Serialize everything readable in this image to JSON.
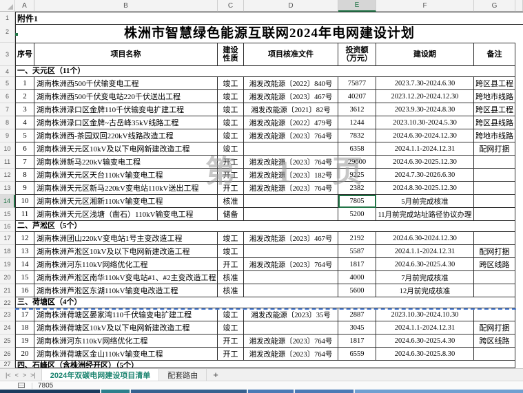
{
  "spreadsheet": {
    "column_headers": [
      "A",
      "B",
      "C",
      "D",
      "E",
      "F",
      "G"
    ],
    "selected_column": "E",
    "selected_row": "14",
    "attachment": "附件1",
    "title": "株洲市智慧绿色能源互联网2024年电网建设计划",
    "watermark": "第 1 页",
    "header": [
      "序号",
      "项目名称",
      "建设\n性质",
      "项目核准文件",
      "投资额\n（万元）",
      "建设期",
      "备注"
    ],
    "sections": [
      {
        "title": "一、天元区（11个）",
        "rows": [
          {
            "no": "1",
            "name": "湖南株洲西500千伏输变电工程",
            "nature": "竣工",
            "doc": "湘发改能源〔2022〕840号",
            "inv": "75877",
            "period": "2023.7.30-2024.6.30",
            "note": "跨区县工程"
          },
          {
            "no": "2",
            "name": "湖南株洲西500千伏变电站220千伏送出工程",
            "nature": "竣工",
            "doc": "湘发改能源〔2023〕467号",
            "inv": "40207",
            "period": "2023.12.20-2024.12.30",
            "note": "跨地市线路"
          },
          {
            "no": "3",
            "name": "湖南株洲渌口区金牌110千伏输变电扩建工程",
            "nature": "竣工",
            "doc": "湘发改能源〔2021〕82号",
            "inv": "3612",
            "period": "2023.9.30-2024.8.30",
            "note": "跨区县工程"
          },
          {
            "no": "4",
            "name": "湖南株洲渌口区金牌~古岳峰35kV线路工程",
            "nature": "竣工",
            "doc": "湘发改能源〔2022〕479号",
            "inv": "1244",
            "period": "2023.10.30-2024.5.30",
            "note": "跨区县线路"
          },
          {
            "no": "5",
            "name": "湖南株洲西-茶园双回220kV线路改造工程",
            "nature": "竣工",
            "doc": "湘发改能源〔2023〕764号",
            "inv": "7832",
            "period": "2024.6.30-2024.12.30",
            "note": "跨地市线路"
          },
          {
            "no": "6",
            "name": "湖南株洲天元区10kV及以下电网新建改造工程",
            "nature": "竣工",
            "doc": "",
            "inv": "6358",
            "period": "2024.1.1-2024.12.31",
            "note": "配网打捆"
          },
          {
            "no": "7",
            "name": "湖南株洲新马220kV输变电工程",
            "nature": "开工",
            "doc": "湘发改能源〔2023〕764号",
            "inv": "29600",
            "period": "2024.6.30-2025.12.30",
            "note": ""
          },
          {
            "no": "8",
            "name": "湖南株洲天元区天台110kV输变电工程",
            "nature": "开工",
            "doc": "湘发改能源〔2023〕182号",
            "inv": "9225",
            "period": "2024.7.30-2026.6.30",
            "note": ""
          },
          {
            "no": "9",
            "name": "湖南株洲天元区新马220kV变电站110kV送出工程",
            "nature": "开工",
            "doc": "湘发改能源〔2023〕764号",
            "inv": "2382",
            "period": "2024.8.30-2025.12.30",
            "note": ""
          },
          {
            "no": "10",
            "name": "湖南株洲天元区湘新110kV输变电工程",
            "nature": "核准",
            "doc": "",
            "inv": "7805",
            "period": "5月前完成核准",
            "note": "",
            "selected": true
          },
          {
            "no": "11",
            "name": "湖南株洲天元区浅塘（凿石）110kV输变电工程",
            "nature": "储备",
            "doc": "",
            "inv": "5200",
            "period": "11月前完成站址路径协议办理",
            "note": ""
          }
        ]
      },
      {
        "title": "二、芦淞区（5个）",
        "rows": [
          {
            "no": "12",
            "name": "湖南株洲团山220kV变电站1号主变改造工程",
            "nature": "竣工",
            "doc": "湘发改能源〔2023〕467号",
            "inv": "2192",
            "period": "2024.6.30-2024.12.30",
            "note": ""
          },
          {
            "no": "13",
            "name": "湖南株洲芦淞区10kV及以下电网新建改造工程",
            "nature": "竣工",
            "doc": "",
            "inv": "5587",
            "period": "2024.1.1-2024.12.31",
            "note": "配网打捆"
          },
          {
            "no": "14",
            "name": "湖南株洲河东110kV网络优化工程",
            "nature": "开工",
            "doc": "湘发改能源〔2023〕764号",
            "inv": "1817",
            "period": "2024.6.30-2025.4.30",
            "note": "跨区线路"
          },
          {
            "no": "15",
            "name": "湖南株洲芦淞区南华110kV变电站#1、#2主变改造工程",
            "nature": "核准",
            "doc": "",
            "inv": "4000",
            "period": "7月前完成核准",
            "note": ""
          },
          {
            "no": "16",
            "name": "湖南株洲芦淞区东湖110kV输变电改造工程",
            "nature": "核准",
            "doc": "",
            "inv": "5600",
            "period": "12月前完成核准",
            "note": ""
          }
        ]
      },
      {
        "title": "三、荷塘区（4个）",
        "rows": [
          {
            "no": "17",
            "name": "湖南株洲荷塘区晏家湾110千伏输变电扩建工程",
            "nature": "竣工",
            "doc": "湘发改能源〔2023〕35号",
            "inv": "2887",
            "period": "2023.10.30-2024.10.30",
            "note": ""
          },
          {
            "no": "18",
            "name": "湖南株洲荷塘区10kV及以下电网新建改造工程",
            "nature": "竣工",
            "doc": "",
            "inv": "3045",
            "period": "2024.1.1-2024.12.31",
            "note": "配网打捆"
          },
          {
            "no": "19",
            "name": "湖南株洲河东110kV网络优化工程",
            "nature": "开工",
            "doc": "湘发改能源〔2023〕764号",
            "inv": "1817",
            "period": "2024.6.30-2025.4.30",
            "note": "跨区线路"
          },
          {
            "no": "20",
            "name": "湖南株洲荷塘区金山110kV输变电工程",
            "nature": "开工",
            "doc": "湘发改能源〔2023〕764号",
            "inv": "6559",
            "period": "2024.6.30-2025.8.30",
            "note": ""
          }
        ]
      },
      {
        "title": "四、石峰区（含株洲经开区）（5个）",
        "partial": true,
        "rows": []
      }
    ]
  },
  "tabbar": {
    "nav_first": "|<",
    "nav_prev": "<",
    "nav_next": ">",
    "nav_last": ">|",
    "sheets": [
      {
        "label": "2024年双碳电网建设项目清单",
        "active": true
      },
      {
        "label": "配套路由",
        "active": false
      }
    ],
    "add_label": "+"
  },
  "statusbar": {
    "value": "7805"
  },
  "colors": {
    "accent_green": "#217346",
    "pagebreak_blue": "#4a7dd4"
  }
}
